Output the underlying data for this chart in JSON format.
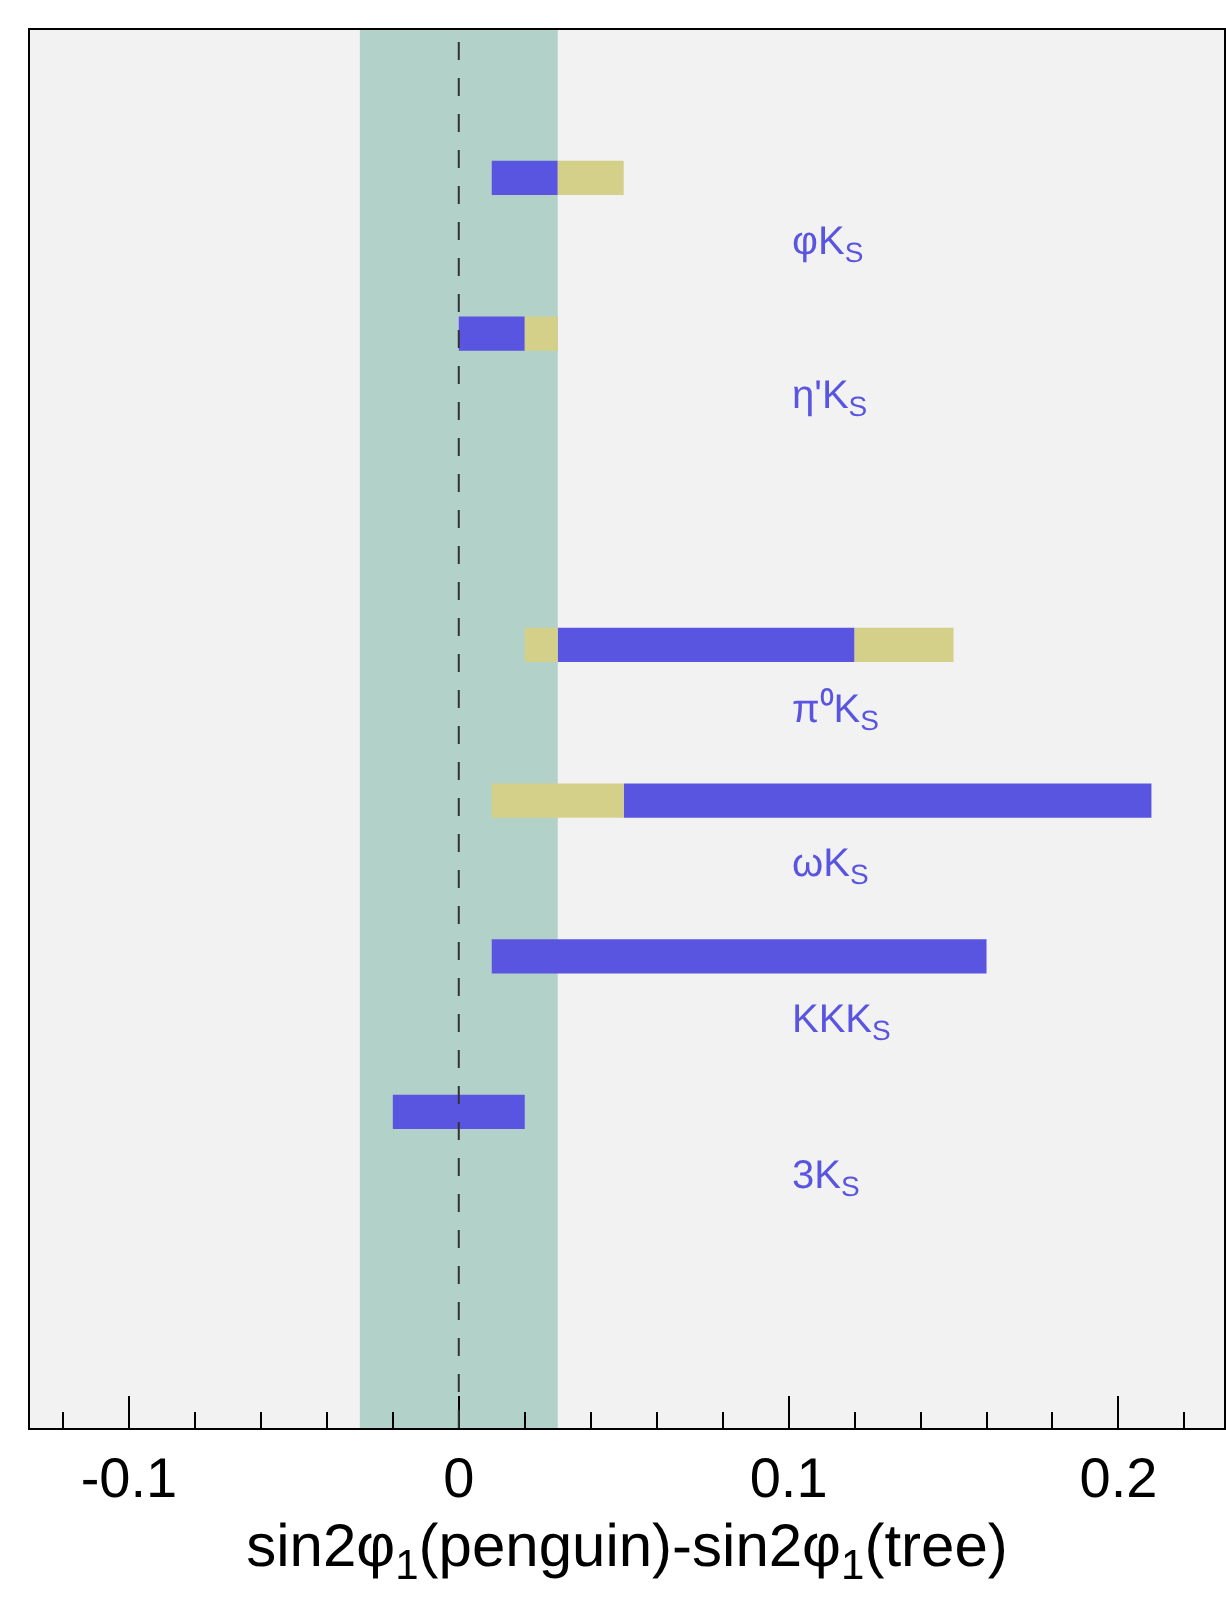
{
  "chart_data": {
    "type": "bar",
    "orientation": "horizontal",
    "xlabel": "sin2φ$_{1}$(penguin)-sin2φ$_{1}$(tree)",
    "categories": [
      "φK$_{S}$",
      "η'K$_{S}$",
      null,
      "π⁰K$_{S}$",
      "ωK$_{S}$",
      "KKK$_{S}$",
      "3K$_{S}$",
      null
    ],
    "series": [
      {
        "color": "#5a55e0",
        "base": [
          0.01,
          0,
          null,
          0.03,
          0.05,
          0.01,
          -0.02,
          null
        ],
        "values": [
          0.02,
          0.02,
          null,
          0.09,
          0.16,
          0.15,
          0.04,
          null
        ]
      },
      {
        "color": "#d4d08a",
        "base": [
          0.03,
          0.02,
          null,
          0.02,
          0.01,
          null,
          null,
          null
        ],
        "values": [
          0.02,
          0.01,
          null,
          0.01,
          0.04,
          null,
          null,
          null
        ]
      },
      {
        "color": "#d4d08a",
        "base": [
          null,
          null,
          null,
          0.12,
          null,
          null,
          null,
          null
        ],
        "values": [
          null,
          null,
          null,
          0.03,
          null,
          null,
          null,
          null
        ]
      }
    ],
    "xlim": [
      -0.13,
      0.232
    ],
    "xticks": [
      -0.1,
      0,
      0.1,
      0.2
    ],
    "bands": [
      {
        "axis": "x",
        "from": -0.03,
        "to": 0.03,
        "color": "#b2d1c8"
      }
    ],
    "ref_lines": [
      {
        "axis": "x",
        "value": 0,
        "line_style": "dashed",
        "color": "#333333"
      }
    ],
    "tick_labels": "x"
  }
}
